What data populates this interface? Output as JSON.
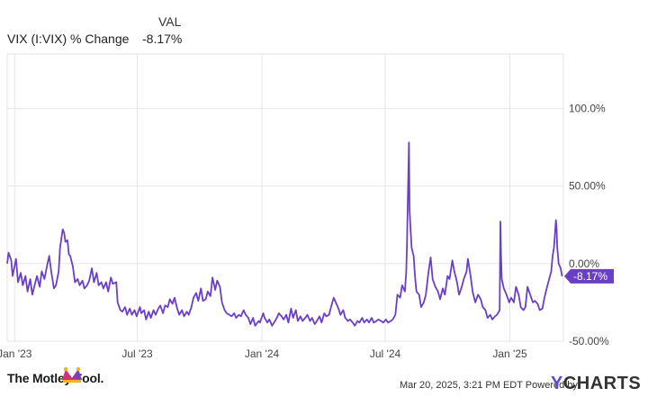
{
  "legend": {
    "header": "VAL",
    "series_name": "VIX (I:VIX) % Change",
    "series_value": "-8.17%"
  },
  "footer": {
    "brand": "The Motley Fool.",
    "timestamp": "Mar 20, 2025, 3:21 PM EDT Powered by",
    "logo_y": "Y",
    "logo_rest": "CHARTS"
  },
  "colors": {
    "line": "#6a3fc8",
    "grid": "#e6e6e6",
    "axis_text": "#444444",
    "tag_bg": "#6a3fc8"
  },
  "chart_data": {
    "type": "line",
    "title": "",
    "xlabel": "",
    "ylabel": "",
    "ylim": [
      -50,
      135
    ],
    "grid": true,
    "y_ticks": [
      {
        "value": 100,
        "label": "100.0%"
      },
      {
        "value": 50,
        "label": "50.00%"
      },
      {
        "value": 0,
        "label": "0.00%"
      },
      {
        "value": -50,
        "label": "-50.00%"
      }
    ],
    "x_ticks": [
      {
        "date": "2023-01-01",
        "label": "Jan '23"
      },
      {
        "date": "2023-07-01",
        "label": "Jul '23"
      },
      {
        "date": "2024-01-01",
        "label": "Jan '24"
      },
      {
        "date": "2024-07-01",
        "label": "Jul '24"
      },
      {
        "date": "2025-01-01",
        "label": "Jan '25"
      }
    ],
    "last_value_label": "-8.17%",
    "series": [
      {
        "name": "VIX (I:VIX) % Change",
        "points": [
          [
            "2022-12-21",
            0
          ],
          [
            "2022-12-23",
            7
          ],
          [
            "2022-12-27",
            2
          ],
          [
            "2022-12-29",
            -8
          ],
          [
            "2023-01-03",
            3
          ],
          [
            "2023-01-06",
            -12
          ],
          [
            "2023-01-10",
            -6
          ],
          [
            "2023-01-13",
            -14
          ],
          [
            "2023-01-17",
            -8
          ],
          [
            "2023-01-20",
            -18
          ],
          [
            "2023-01-24",
            -10
          ],
          [
            "2023-01-27",
            -20
          ],
          [
            "2023-01-31",
            -13
          ],
          [
            "2023-02-03",
            -8
          ],
          [
            "2023-02-07",
            -15
          ],
          [
            "2023-02-10",
            -5
          ],
          [
            "2023-02-14",
            -10
          ],
          [
            "2023-02-17",
            -3
          ],
          [
            "2023-02-21",
            5
          ],
          [
            "2023-02-24",
            -5
          ],
          [
            "2023-02-28",
            -16
          ],
          [
            "2023-03-03",
            -14
          ],
          [
            "2023-03-07",
            -5
          ],
          [
            "2023-03-09",
            10
          ],
          [
            "2023-03-13",
            22
          ],
          [
            "2023-03-15",
            20
          ],
          [
            "2023-03-17",
            14
          ],
          [
            "2023-03-20",
            15
          ],
          [
            "2023-03-22",
            6
          ],
          [
            "2023-03-24",
            5
          ],
          [
            "2023-03-28",
            -2
          ],
          [
            "2023-03-31",
            -12
          ],
          [
            "2023-04-04",
            -10
          ],
          [
            "2023-04-07",
            -14
          ],
          [
            "2023-04-11",
            -11
          ],
          [
            "2023-04-14",
            -16
          ],
          [
            "2023-04-18",
            -14
          ],
          [
            "2023-04-21",
            -11
          ],
          [
            "2023-04-25",
            -3
          ],
          [
            "2023-04-28",
            -12
          ],
          [
            "2023-05-02",
            -6
          ],
          [
            "2023-05-05",
            -14
          ],
          [
            "2023-05-09",
            -12
          ],
          [
            "2023-05-12",
            -16
          ],
          [
            "2023-05-16",
            -12
          ],
          [
            "2023-05-19",
            -18
          ],
          [
            "2023-05-23",
            -9
          ],
          [
            "2023-05-26",
            -13
          ],
          [
            "2023-05-31",
            -12
          ],
          [
            "2023-06-02",
            -25
          ],
          [
            "2023-06-06",
            -30
          ],
          [
            "2023-06-09",
            -31
          ],
          [
            "2023-06-13",
            -28
          ],
          [
            "2023-06-16",
            -33
          ],
          [
            "2023-06-20",
            -29
          ],
          [
            "2023-06-23",
            -33
          ],
          [
            "2023-06-27",
            -30
          ],
          [
            "2023-06-30",
            -34
          ],
          [
            "2023-07-05",
            -28
          ],
          [
            "2023-07-07",
            -32
          ],
          [
            "2023-07-11",
            -30
          ],
          [
            "2023-07-14",
            -36
          ],
          [
            "2023-07-18",
            -31
          ],
          [
            "2023-07-21",
            -35
          ],
          [
            "2023-07-25",
            -30
          ],
          [
            "2023-07-28",
            -33
          ],
          [
            "2023-08-01",
            -29
          ],
          [
            "2023-08-04",
            -27
          ],
          [
            "2023-08-08",
            -32
          ],
          [
            "2023-08-11",
            -27
          ],
          [
            "2023-08-15",
            -28
          ],
          [
            "2023-08-18",
            -23
          ],
          [
            "2023-08-22",
            -26
          ],
          [
            "2023-08-25",
            -22
          ],
          [
            "2023-08-29",
            -29
          ],
          [
            "2023-09-01",
            -33
          ],
          [
            "2023-09-05",
            -30
          ],
          [
            "2023-09-08",
            -34
          ],
          [
            "2023-09-12",
            -31
          ],
          [
            "2023-09-15",
            -33
          ],
          [
            "2023-09-19",
            -28
          ],
          [
            "2023-09-22",
            -22
          ],
          [
            "2023-09-26",
            -19
          ],
          [
            "2023-09-29",
            -24
          ],
          [
            "2023-10-03",
            -16
          ],
          [
            "2023-10-06",
            -24
          ],
          [
            "2023-10-10",
            -23
          ],
          [
            "2023-10-13",
            -18
          ],
          [
            "2023-10-17",
            -21
          ],
          [
            "2023-10-20",
            -9
          ],
          [
            "2023-10-24",
            -17
          ],
          [
            "2023-10-27",
            -11
          ],
          [
            "2023-10-31",
            -15
          ],
          [
            "2023-11-03",
            -25
          ],
          [
            "2023-11-07",
            -30
          ],
          [
            "2023-11-10",
            -32
          ],
          [
            "2023-11-14",
            -33
          ],
          [
            "2023-11-17",
            -34
          ],
          [
            "2023-11-21",
            -32
          ],
          [
            "2023-11-24",
            -35
          ],
          [
            "2023-11-28",
            -33
          ],
          [
            "2023-12-01",
            -34
          ],
          [
            "2023-12-05",
            -30
          ],
          [
            "2023-12-08",
            -33
          ],
          [
            "2023-12-12",
            -35
          ],
          [
            "2023-12-15",
            -39
          ],
          [
            "2023-12-19",
            -35
          ],
          [
            "2023-12-22",
            -40
          ],
          [
            "2023-12-27",
            -37
          ],
          [
            "2023-12-29",
            -38
          ],
          [
            "2024-01-03",
            -32
          ],
          [
            "2024-01-05",
            -35
          ],
          [
            "2024-01-09",
            -38
          ],
          [
            "2024-01-12",
            -36
          ],
          [
            "2024-01-16",
            -40
          ],
          [
            "2024-01-19",
            -38
          ],
          [
            "2024-01-23",
            -35
          ],
          [
            "2024-01-26",
            -32
          ],
          [
            "2024-01-30",
            -34
          ],
          [
            "2024-02-02",
            -36
          ],
          [
            "2024-02-06",
            -33
          ],
          [
            "2024-02-09",
            -38
          ],
          [
            "2024-02-13",
            -29
          ],
          [
            "2024-02-16",
            -35
          ],
          [
            "2024-02-20",
            -30
          ],
          [
            "2024-02-23",
            -37
          ],
          [
            "2024-02-27",
            -34
          ],
          [
            "2024-03-01",
            -37
          ],
          [
            "2024-03-05",
            -35
          ],
          [
            "2024-03-08",
            -33
          ],
          [
            "2024-03-12",
            -37
          ],
          [
            "2024-03-15",
            -35
          ],
          [
            "2024-03-19",
            -39
          ],
          [
            "2024-03-22",
            -37
          ],
          [
            "2024-03-26",
            -34
          ],
          [
            "2024-03-29",
            -38
          ],
          [
            "2024-04-02",
            -32
          ],
          [
            "2024-04-05",
            -34
          ],
          [
            "2024-04-09",
            -33
          ],
          [
            "2024-04-12",
            -28
          ],
          [
            "2024-04-16",
            -22
          ],
          [
            "2024-04-19",
            -25
          ],
          [
            "2024-04-23",
            -29
          ],
          [
            "2024-04-26",
            -33
          ],
          [
            "2024-04-30",
            -30
          ],
          [
            "2024-05-03",
            -35
          ],
          [
            "2024-05-07",
            -37
          ],
          [
            "2024-05-10",
            -36
          ],
          [
            "2024-05-14",
            -38
          ],
          [
            "2024-05-17",
            -40
          ],
          [
            "2024-05-21",
            -37
          ],
          [
            "2024-05-24",
            -38
          ],
          [
            "2024-05-28",
            -35
          ],
          [
            "2024-05-31",
            -38
          ],
          [
            "2024-06-04",
            -36
          ],
          [
            "2024-06-07",
            -38
          ],
          [
            "2024-06-11",
            -35
          ],
          [
            "2024-06-14",
            -38
          ],
          [
            "2024-06-18",
            -37
          ],
          [
            "2024-06-21",
            -36
          ],
          [
            "2024-06-25",
            -37
          ],
          [
            "2024-06-28",
            -38
          ],
          [
            "2024-07-02",
            -36
          ],
          [
            "2024-07-05",
            -38
          ],
          [
            "2024-07-09",
            -37
          ],
          [
            "2024-07-12",
            -36
          ],
          [
            "2024-07-16",
            -33
          ],
          [
            "2024-07-19",
            -20
          ],
          [
            "2024-07-23",
            -22
          ],
          [
            "2024-07-26",
            -14
          ],
          [
            "2024-07-30",
            -18
          ],
          [
            "2024-08-01",
            -5
          ],
          [
            "2024-08-02",
            10
          ],
          [
            "2024-08-05",
            78
          ],
          [
            "2024-08-06",
            35
          ],
          [
            "2024-08-07",
            25
          ],
          [
            "2024-08-08",
            18
          ],
          [
            "2024-08-09",
            10
          ],
          [
            "2024-08-12",
            5
          ],
          [
            "2024-08-14",
            -8
          ],
          [
            "2024-08-16",
            -18
          ],
          [
            "2024-08-20",
            -20
          ],
          [
            "2024-08-23",
            -28
          ],
          [
            "2024-08-27",
            -25
          ],
          [
            "2024-08-30",
            -20
          ],
          [
            "2024-09-03",
            -5
          ],
          [
            "2024-09-06",
            4
          ],
          [
            "2024-09-09",
            -10
          ],
          [
            "2024-09-13",
            -15
          ],
          [
            "2024-09-17",
            -18
          ],
          [
            "2024-09-20",
            -23
          ],
          [
            "2024-09-24",
            -16
          ],
          [
            "2024-09-27",
            -20
          ],
          [
            "2024-10-01",
            -8
          ],
          [
            "2024-10-04",
            -10
          ],
          [
            "2024-10-08",
            2
          ],
          [
            "2024-10-11",
            -5
          ],
          [
            "2024-10-15",
            -12
          ],
          [
            "2024-10-18",
            -20
          ],
          [
            "2024-10-22",
            -15
          ],
          [
            "2024-10-25",
            -10
          ],
          [
            "2024-10-29",
            -5
          ],
          [
            "2024-10-31",
            3
          ],
          [
            "2024-11-04",
            -8
          ],
          [
            "2024-11-07",
            -18
          ],
          [
            "2024-11-11",
            -25
          ],
          [
            "2024-11-15",
            -20
          ],
          [
            "2024-11-19",
            -23
          ],
          [
            "2024-11-22",
            -28
          ],
          [
            "2024-11-26",
            -30
          ],
          [
            "2024-11-29",
            -35
          ],
          [
            "2024-12-03",
            -33
          ],
          [
            "2024-12-06",
            -36
          ],
          [
            "2024-12-10",
            -34
          ],
          [
            "2024-12-13",
            -33
          ],
          [
            "2024-12-17",
            -30
          ],
          [
            "2024-12-18",
            27
          ],
          [
            "2024-12-19",
            5
          ],
          [
            "2024-12-20",
            -10
          ],
          [
            "2024-12-23",
            -16
          ],
          [
            "2024-12-27",
            -20
          ],
          [
            "2024-12-31",
            -25
          ],
          [
            "2025-01-03",
            -22
          ],
          [
            "2025-01-07",
            -25
          ],
          [
            "2025-01-10",
            -15
          ],
          [
            "2025-01-14",
            -20
          ],
          [
            "2025-01-17",
            -28
          ],
          [
            "2025-01-21",
            -30
          ],
          [
            "2025-01-24",
            -28
          ],
          [
            "2025-01-27",
            -15
          ],
          [
            "2025-01-31",
            -20
          ],
          [
            "2025-02-04",
            -25
          ],
          [
            "2025-02-07",
            -24
          ],
          [
            "2025-02-11",
            -26
          ],
          [
            "2025-02-14",
            -30
          ],
          [
            "2025-02-18",
            -29
          ],
          [
            "2025-02-21",
            -22
          ],
          [
            "2025-02-25",
            -15
          ],
          [
            "2025-02-28",
            -10
          ],
          [
            "2025-03-03",
            -5
          ],
          [
            "2025-03-05",
            5
          ],
          [
            "2025-03-07",
            10
          ],
          [
            "2025-03-10",
            28
          ],
          [
            "2025-03-11",
            22
          ],
          [
            "2025-03-12",
            10
          ],
          [
            "2025-03-13",
            5
          ],
          [
            "2025-03-14",
            0
          ],
          [
            "2025-03-17",
            -3
          ],
          [
            "2025-03-19",
            -8.17
          ]
        ]
      }
    ]
  }
}
